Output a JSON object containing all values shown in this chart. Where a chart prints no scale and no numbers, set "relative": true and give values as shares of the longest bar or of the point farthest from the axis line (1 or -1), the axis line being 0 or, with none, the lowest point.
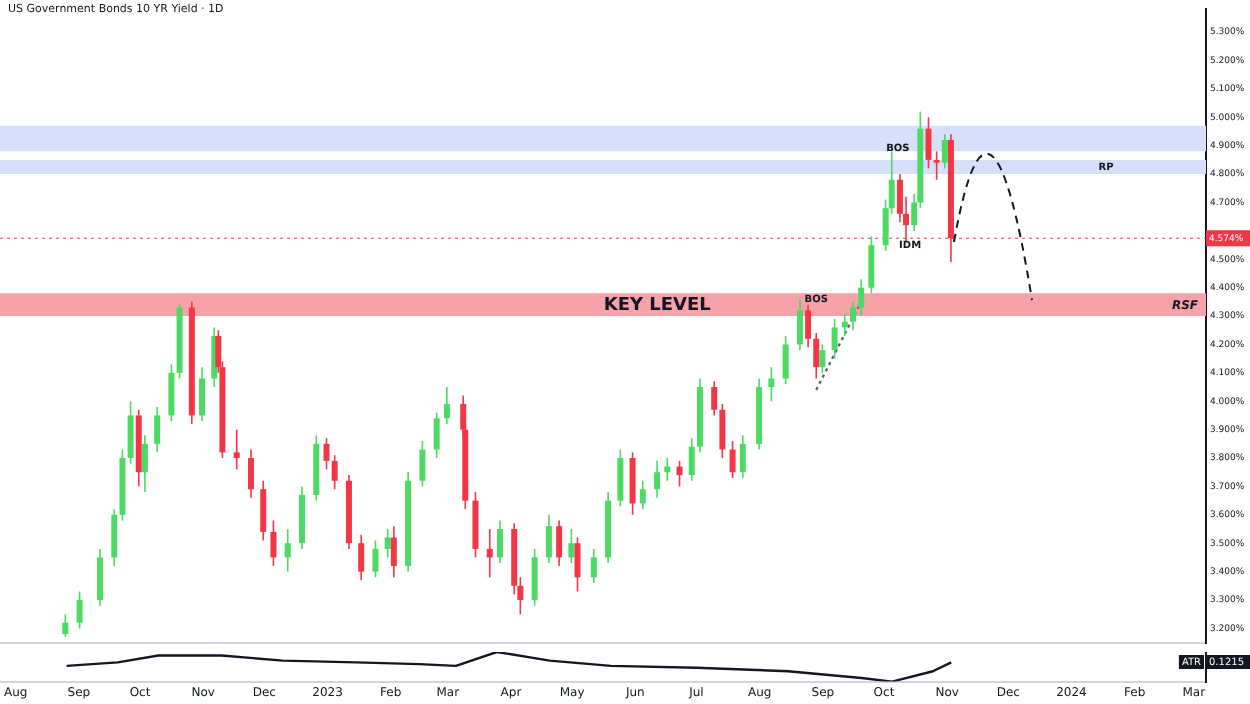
{
  "chart_data": [
    {
      "type": "candlestick",
      "title": "US Government Bonds 10 YR Yield · 1D",
      "x": [
        "2022-08-26",
        "2022-09-02",
        "2022-09-12",
        "2022-09-19",
        "2022-09-23",
        "2022-09-27",
        "2022-10-01",
        "2022-10-04",
        "2022-10-10",
        "2022-10-17",
        "2022-10-21",
        "2022-10-27",
        "2022-11-01",
        "2022-11-07",
        "2022-11-09",
        "2022-11-11",
        "2022-11-18",
        "2022-11-25",
        "2022-12-01",
        "2022-12-06",
        "2022-12-13",
        "2022-12-20",
        "2022-12-27",
        "2023-01-01",
        "2023-01-05",
        "2023-01-12",
        "2023-01-18",
        "2023-01-25",
        "2023-01-31",
        "2023-02-03",
        "2023-02-10",
        "2023-02-17",
        "2023-02-24",
        "2023-03-01",
        "2023-03-09",
        "2023-03-10",
        "2023-03-15",
        "2023-03-22",
        "2023-03-27",
        "2023-04-03",
        "2023-04-06",
        "2023-04-13",
        "2023-04-20",
        "2023-04-25",
        "2023-05-01",
        "2023-05-04",
        "2023-05-12",
        "2023-05-19",
        "2023-05-25",
        "2023-05-31",
        "2023-06-05",
        "2023-06-12",
        "2023-06-17",
        "2023-06-23",
        "2023-06-29",
        "2023-07-03",
        "2023-07-10",
        "2023-07-14",
        "2023-07-19",
        "2023-07-24",
        "2023-08-01",
        "2023-08-07",
        "2023-08-14",
        "2023-08-21",
        "2023-08-25",
        "2023-08-29",
        "2023-09-01",
        "2023-09-07",
        "2023-09-12",
        "2023-09-16",
        "2023-09-20",
        "2023-09-25",
        "2023-10-02",
        "2023-10-05",
        "2023-10-09",
        "2023-10-12",
        "2023-10-16",
        "2023-10-19",
        "2023-10-23",
        "2023-10-27",
        "2023-10-31",
        "2023-11-03"
      ],
      "ohlc": [
        [
          3.18,
          3.25,
          3.17,
          3.22
        ],
        [
          3.22,
          3.33,
          3.2,
          3.3
        ],
        [
          3.3,
          3.48,
          3.28,
          3.45
        ],
        [
          3.45,
          3.62,
          3.42,
          3.6
        ],
        [
          3.6,
          3.83,
          3.58,
          3.8
        ],
        [
          3.8,
          4.0,
          3.78,
          3.95
        ],
        [
          3.95,
          3.97,
          3.7,
          3.75
        ],
        [
          3.75,
          3.88,
          3.68,
          3.85
        ],
        [
          3.85,
          3.98,
          3.82,
          3.95
        ],
        [
          3.95,
          4.13,
          3.93,
          4.1
        ],
        [
          4.1,
          4.34,
          4.08,
          4.33
        ],
        [
          4.33,
          4.35,
          3.92,
          3.95
        ],
        [
          3.95,
          4.12,
          3.93,
          4.08
        ],
        [
          4.08,
          4.26,
          4.05,
          4.23
        ],
        [
          4.23,
          4.25,
          4.1,
          4.12
        ],
        [
          4.12,
          4.14,
          3.8,
          3.82
        ],
        [
          3.82,
          3.9,
          3.76,
          3.8
        ],
        [
          3.8,
          3.83,
          3.66,
          3.69
        ],
        [
          3.69,
          3.72,
          3.51,
          3.54
        ],
        [
          3.54,
          3.58,
          3.42,
          3.45
        ],
        [
          3.45,
          3.55,
          3.4,
          3.5
        ],
        [
          3.5,
          3.7,
          3.48,
          3.67
        ],
        [
          3.67,
          3.88,
          3.65,
          3.85
        ],
        [
          3.85,
          3.87,
          3.76,
          3.79
        ],
        [
          3.79,
          3.81,
          3.69,
          3.72
        ],
        [
          3.72,
          3.74,
          3.48,
          3.5
        ],
        [
          3.5,
          3.53,
          3.37,
          3.4
        ],
        [
          3.4,
          3.51,
          3.38,
          3.48
        ],
        [
          3.48,
          3.55,
          3.45,
          3.52
        ],
        [
          3.52,
          3.56,
          3.38,
          3.42
        ],
        [
          3.42,
          3.75,
          3.4,
          3.72
        ],
        [
          3.72,
          3.86,
          3.7,
          3.83
        ],
        [
          3.83,
          3.96,
          3.8,
          3.94
        ],
        [
          3.94,
          4.05,
          3.92,
          3.99
        ],
        [
          3.99,
          4.02,
          3.87,
          3.9
        ],
        [
          3.9,
          3.92,
          3.62,
          3.65
        ],
        [
          3.65,
          3.68,
          3.45,
          3.48
        ],
        [
          3.48,
          3.55,
          3.38,
          3.45
        ],
        [
          3.45,
          3.58,
          3.43,
          3.55
        ],
        [
          3.55,
          3.57,
          3.32,
          3.35
        ],
        [
          3.35,
          3.38,
          3.25,
          3.3
        ],
        [
          3.3,
          3.48,
          3.28,
          3.45
        ],
        [
          3.45,
          3.6,
          3.43,
          3.56
        ],
        [
          3.56,
          3.58,
          3.42,
          3.45
        ],
        [
          3.45,
          3.55,
          3.43,
          3.5
        ],
        [
          3.5,
          3.52,
          3.33,
          3.38
        ],
        [
          3.38,
          3.48,
          3.36,
          3.45
        ],
        [
          3.45,
          3.68,
          3.43,
          3.65
        ],
        [
          3.65,
          3.83,
          3.63,
          3.8
        ],
        [
          3.8,
          3.82,
          3.6,
          3.64
        ],
        [
          3.64,
          3.72,
          3.62,
          3.69
        ],
        [
          3.69,
          3.79,
          3.66,
          3.75
        ],
        [
          3.75,
          3.8,
          3.72,
          3.77
        ],
        [
          3.77,
          3.79,
          3.7,
          3.74
        ],
        [
          3.74,
          3.87,
          3.72,
          3.84
        ],
        [
          3.84,
          4.08,
          3.82,
          4.05
        ],
        [
          4.05,
          4.07,
          3.95,
          3.97
        ],
        [
          3.97,
          3.99,
          3.8,
          3.83
        ],
        [
          3.83,
          3.86,
          3.73,
          3.75
        ],
        [
          3.75,
          3.88,
          3.73,
          3.85
        ],
        [
          3.85,
          4.08,
          3.83,
          4.05
        ],
        [
          4.05,
          4.12,
          4.0,
          4.08
        ],
        [
          4.08,
          4.23,
          4.06,
          4.2
        ],
        [
          4.2,
          4.36,
          4.18,
          4.32
        ],
        [
          4.32,
          4.34,
          4.19,
          4.22
        ],
        [
          4.22,
          4.24,
          4.08,
          4.12
        ],
        [
          4.12,
          4.2,
          4.1,
          4.18
        ],
        [
          4.18,
          4.29,
          4.15,
          4.26
        ],
        [
          4.26,
          4.31,
          4.23,
          4.28
        ],
        [
          4.28,
          4.35,
          4.25,
          4.33
        ],
        [
          4.33,
          4.43,
          4.3,
          4.4
        ],
        [
          4.4,
          4.58,
          4.38,
          4.55
        ],
        [
          4.55,
          4.71,
          4.53,
          4.68
        ],
        [
          4.68,
          4.88,
          4.66,
          4.78
        ],
        [
          4.78,
          4.8,
          4.63,
          4.66
        ],
        [
          4.66,
          4.72,
          4.56,
          4.62
        ],
        [
          4.62,
          4.73,
          4.6,
          4.7
        ],
        [
          4.7,
          5.02,
          4.68,
          4.96
        ],
        [
          4.96,
          5.0,
          4.82,
          4.85
        ],
        [
          4.85,
          4.88,
          4.78,
          4.84
        ],
        [
          4.84,
          4.94,
          4.82,
          4.92
        ],
        [
          4.92,
          4.94,
          4.49,
          4.574
        ]
      ],
      "colors": [
        "#4cd964",
        "#4cd964",
        "#4cd964",
        "#4cd964",
        "#4cd964",
        "#4cd964",
        "#f23645",
        "#4cd964",
        "#4cd964",
        "#4cd964",
        "#4cd964",
        "#f23645",
        "#4cd964",
        "#4cd964",
        "#f23645",
        "#f23645",
        "#f23645",
        "#f23645",
        "#f23645",
        "#f23645",
        "#4cd964",
        "#4cd964",
        "#4cd964",
        "#f23645",
        "#f23645",
        "#f23645",
        "#f23645",
        "#4cd964",
        "#4cd964",
        "#f23645",
        "#4cd964",
        "#4cd964",
        "#4cd964",
        "#4cd964",
        "#f23645",
        "#f23645",
        "#f23645",
        "#f23645",
        "#4cd964",
        "#f23645",
        "#f23645",
        "#4cd964",
        "#4cd964",
        "#f23645",
        "#4cd964",
        "#f23645",
        "#4cd964",
        "#4cd964",
        "#4cd964",
        "#f23645",
        "#4cd964",
        "#4cd964",
        "#4cd964",
        "#f23645",
        "#4cd964",
        "#4cd964",
        "#f23645",
        "#f23645",
        "#f23645",
        "#4cd964",
        "#4cd964",
        "#4cd964",
        "#4cd964",
        "#4cd964",
        "#f23645",
        "#f23645",
        "#4cd964",
        "#4cd964",
        "#4cd964",
        "#4cd964",
        "#4cd964",
        "#4cd964",
        "#4cd964",
        "#4cd964",
        "#f23645",
        "#f23645",
        "#4cd964",
        "#4cd964",
        "#f23645",
        "#f23645",
        "#4cd964",
        "#f23645"
      ],
      "series": [
        {
          "type": "line",
          "x": [
            "2023-08-29",
            "2023-09-20"
          ],
          "values": [
            4.04,
            4.35
          ],
          "color": "#5d606b",
          "line_style": "dotted"
        }
      ],
      "xlim": [
        "2022-07-25",
        "2024-03-07"
      ],
      "ylim": [
        3.15,
        5.38
      ],
      "yticks": [
        {
          "value": 3.2,
          "label": "3.200%"
        },
        {
          "value": 3.3,
          "label": "3.300%"
        },
        {
          "value": 3.4,
          "label": "3.400%"
        },
        {
          "value": 3.5,
          "label": "3.500%"
        },
        {
          "value": 3.6,
          "label": "3.600%"
        },
        {
          "value": 3.7,
          "label": "3.700%"
        },
        {
          "value": 3.8,
          "label": "3.800%"
        },
        {
          "value": 3.9,
          "label": "3.900%"
        },
        {
          "value": 4.0,
          "label": "4.000%"
        },
        {
          "value": 4.1,
          "label": "4.100%"
        },
        {
          "value": 4.2,
          "label": "4.200%"
        },
        {
          "value": 4.3,
          "label": "4.300%"
        },
        {
          "value": 4.4,
          "label": "4.400%"
        },
        {
          "value": 4.5,
          "label": "4.500%"
        },
        {
          "value": 4.7,
          "label": "4.700%"
        },
        {
          "value": 4.8,
          "label": "4.800%"
        },
        {
          "value": 4.9,
          "label": "4.900%"
        },
        {
          "value": 5.0,
          "label": "5.000%"
        },
        {
          "value": 5.1,
          "label": "5.100%"
        },
        {
          "value": 5.2,
          "label": "5.200%"
        },
        {
          "value": 5.3,
          "label": "5.300%"
        }
      ],
      "tick_labels": "y",
      "grid": false,
      "bands": [
        {
          "axis": "y",
          "from": 4.88,
          "to": 4.97,
          "color": "#d6e0fb"
        },
        {
          "axis": "y",
          "from": 4.8,
          "to": 4.85,
          "color": "#d6e0fb"
        },
        {
          "axis": "y",
          "from": 4.3,
          "to": 4.38,
          "color": "#f7a1a8",
          "label": "KEY LEVEL"
        }
      ],
      "ref_lines": [
        {
          "axis": "y",
          "value": 4.574,
          "label": "4.574%",
          "color": "#f23645",
          "line_style": "dotted"
        }
      ],
      "annotations": [
        "RSF",
        {
          "text": "BOS",
          "x": "2023-10-08",
          "y": 4.89
        },
        {
          "text": "BOS",
          "x": "2023-08-29",
          "y": 4.36
        },
        {
          "text": "IDM",
          "x": "2023-10-14",
          "y": 4.55
        },
        {
          "text": "RP",
          "x": "2024-01-18",
          "y": 4.825
        }
      ]
    },
    {
      "type": "line",
      "series": [
        {
          "color": "#131722",
          "x": [
            "2022-08-26",
            "2022-09-20",
            "2022-10-10",
            "2022-11-10",
            "2022-12-10",
            "2023-01-15",
            "2023-02-15",
            "2023-03-05",
            "2023-03-25",
            "2023-04-20",
            "2023-05-20",
            "2023-07-01",
            "2023-08-15",
            "2023-09-20",
            "2023-10-05",
            "2023-10-25",
            "2023-11-03"
          ],
          "values": [
            0.53,
            0.65,
            0.88,
            0.88,
            0.71,
            0.65,
            0.59,
            0.53,
            1,
            0.71,
            0.53,
            0.47,
            0.35,
            0.12,
            0,
            0.35,
            0.65
          ]
        }
      ],
      "annotations": [
        "ATR",
        "0.1215"
      ],
      "relative": true,
      "xlim": [
        "2022-07-25",
        "2024-03-07"
      ],
      "xticks": [
        {
          "value": "2022-08",
          "label": "Aug"
        },
        {
          "value": "2022-09",
          "label": "Sep"
        },
        {
          "value": "2022-10",
          "label": "Oct"
        },
        {
          "value": "2022-11",
          "label": "Nov"
        },
        {
          "value": "2022-12",
          "label": "Dec"
        },
        {
          "value": "2023-01",
          "label": "2023"
        },
        {
          "value": "2023-02",
          "label": "Feb"
        },
        {
          "value": "2023-03",
          "label": "Mar"
        },
        {
          "value": "2023-04",
          "label": "Apr"
        },
        {
          "value": "2023-05",
          "label": "May"
        },
        {
          "value": "2023-06",
          "label": "Jun"
        },
        {
          "value": "2023-07",
          "label": "Jul"
        },
        {
          "value": "2023-08",
          "label": "Aug"
        },
        {
          "value": "2023-09",
          "label": "Sep"
        },
        {
          "value": "2023-10",
          "label": "Oct"
        },
        {
          "value": "2023-11",
          "label": "Nov"
        },
        {
          "value": "2023-12",
          "label": "Dec"
        },
        {
          "value": "2024-01",
          "label": "2024"
        },
        {
          "value": "2024-02",
          "label": "Feb"
        },
        {
          "value": "2024-03",
          "label": "Mar"
        }
      ],
      "tick_labels": "x"
    }
  ]
}
